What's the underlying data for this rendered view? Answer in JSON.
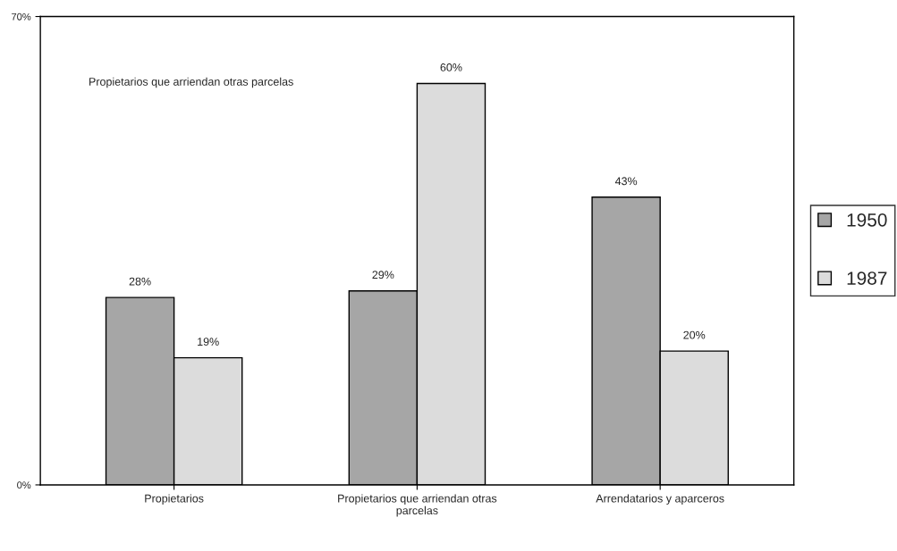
{
  "chart_data": {
    "type": "bar",
    "categories": [
      "Propietarios",
      "Propietarios que arriendan otras parcelas",
      "Arrendatarios y aparceros"
    ],
    "series": [
      {
        "name": "1950",
        "color": "#a6a6a6",
        "values": [
          28,
          29,
          43
        ],
        "value_labels": [
          "28%",
          "29%",
          "43%"
        ]
      },
      {
        "name": "1987",
        "color": "#dcdcdc",
        "values": [
          19,
          60,
          20
        ],
        "value_labels": [
          "19%",
          "60%",
          "20%"
        ]
      }
    ],
    "ylim": [
      0,
      70
    ],
    "yticks": [
      {
        "value": 0,
        "label": "0%"
      },
      {
        "value": 70,
        "label": "70%"
      }
    ],
    "annotations": [
      "Propietarios que arriendan otras parcelas"
    ],
    "legend": "right",
    "grid": false
  }
}
